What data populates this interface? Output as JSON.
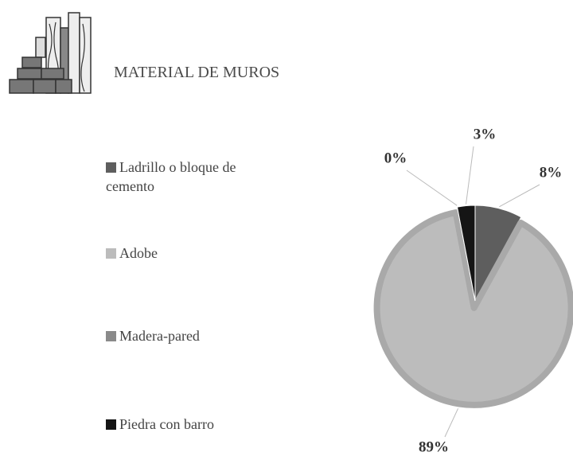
{
  "chart_data": {
    "type": "pie",
    "title": "MATERIAL  DE MUROS",
    "categories": [
      "Ladrillo o bloque de cemento",
      "Adobe",
      "Madera-pared",
      "Piedra con barro"
    ],
    "values": [
      8,
      89,
      0,
      3
    ],
    "value_labels": [
      "8%",
      "89%",
      "0%",
      "3%"
    ],
    "colors": [
      "#5e5e5e",
      "#bcbcbc",
      "#8a8a8a",
      "#151515"
    ],
    "legend": "left"
  }
}
